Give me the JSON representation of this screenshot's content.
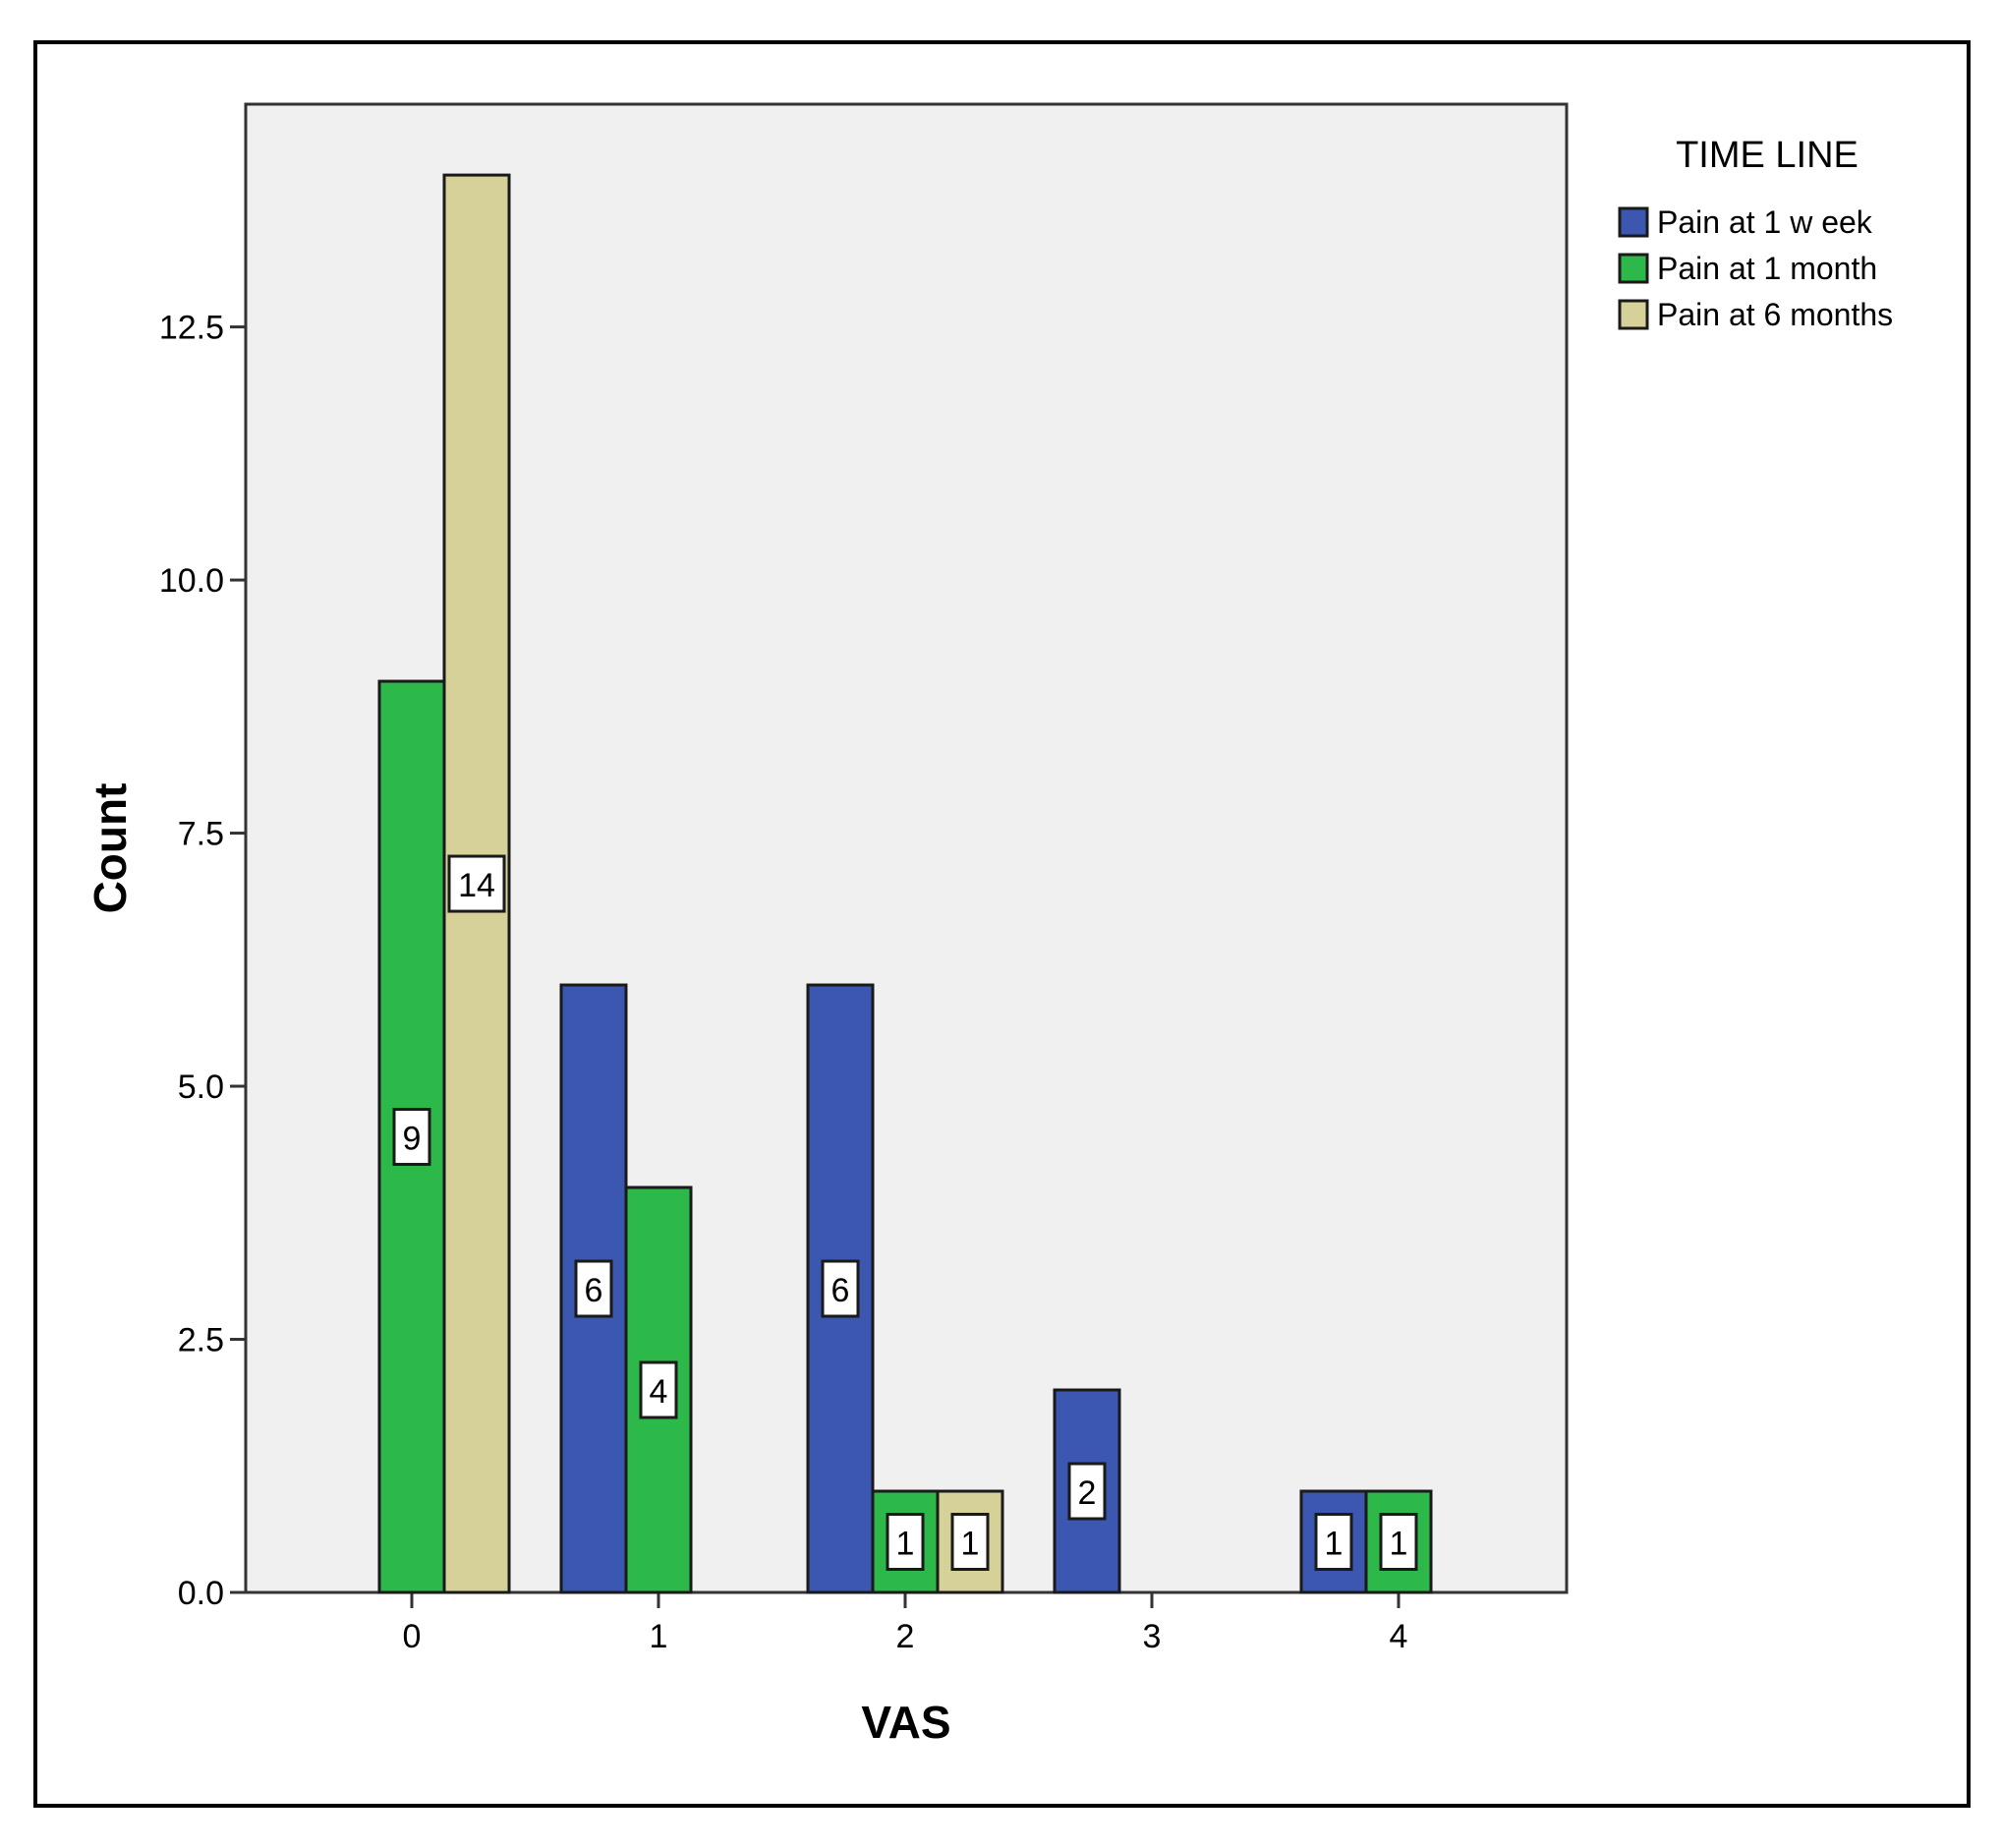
{
  "chart_data": {
    "type": "bar",
    "categories": [
      "0",
      "1",
      "2",
      "3",
      "4"
    ],
    "series": [
      {
        "name": "Pain at 1 w eek",
        "color": "#3c57b0",
        "values": [
          0,
          6,
          6,
          2,
          1
        ]
      },
      {
        "name": "Pain at 1 month",
        "color": "#2db84a",
        "values": [
          9,
          4,
          1,
          0,
          1
        ]
      },
      {
        "name": "Pain at 6 months",
        "color": "#d6d199",
        "values": [
          14,
          0,
          1,
          0,
          0
        ]
      }
    ],
    "title": "",
    "xlabel": "VAS",
    "ylabel": "Count",
    "ylim": [
      0,
      14.7
    ],
    "yticks": [
      0,
      2.5,
      5,
      7.5,
      10,
      12.5
    ],
    "ytick_labels": [
      "0.0",
      "2.5",
      "5.0",
      "7.5",
      "10.0",
      "12.5"
    ],
    "legend_title": "TIME LINE",
    "legend_position": "top-right, outside plot",
    "plot_background": "#f0f0f0",
    "grid": false,
    "data_labels": true
  }
}
